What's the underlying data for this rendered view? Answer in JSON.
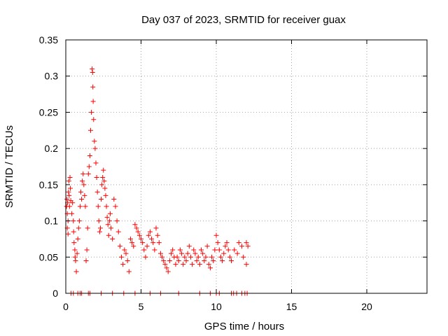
{
  "chart_data": {
    "type": "scatter",
    "title": "Day 037 of 2023, SRMTID for receiver guax",
    "xlabel": "GPS time / hours",
    "ylabel": "SRMTID / TECUs",
    "xlim": [
      0,
      24
    ],
    "ylim": [
      0,
      0.35
    ],
    "xticks": [
      "0",
      "5",
      "10",
      "15",
      "20"
    ],
    "yticks": [
      "0",
      "0.05",
      "0.1",
      "0.15",
      "0.2",
      "0.25",
      "0.3",
      "0.35"
    ],
    "grid": true,
    "marker": "+",
    "color": "#ff0000",
    "series": [
      {
        "name": "SRMTID",
        "points": [
          [
            0.05,
            0.12
          ],
          [
            0.08,
            0.13
          ],
          [
            0.1,
            0.11
          ],
          [
            0.12,
            0.125
          ],
          [
            0.15,
            0.1
          ],
          [
            0.18,
            0.14
          ],
          [
            0.2,
            0.155
          ],
          [
            0.22,
            0.135
          ],
          [
            0.25,
            0.12
          ],
          [
            0.28,
            0.16
          ],
          [
            0.3,
            0.145
          ],
          [
            0.33,
            0.128
          ],
          [
            0.1,
            0.09
          ],
          [
            0.15,
            0.082
          ],
          [
            0.4,
            0.11
          ],
          [
            0.45,
            0.125
          ],
          [
            0.5,
            0.1
          ],
          [
            0.52,
            0.085
          ],
          [
            0.55,
            0.07
          ],
          [
            0.6,
            0.06
          ],
          [
            0.62,
            0.05
          ],
          [
            0.65,
            0.045
          ],
          [
            0.7,
            0.03
          ],
          [
            0.75,
            0.055
          ],
          [
            0.8,
            0.075
          ],
          [
            0.85,
            0.09
          ],
          [
            0.9,
            0.1
          ],
          [
            0.95,
            0.12
          ],
          [
            1.0,
            0.14
          ],
          [
            1.05,
            0.13
          ],
          [
            1.1,
            0.155
          ],
          [
            1.15,
            0.165
          ],
          [
            1.2,
            0.15
          ],
          [
            1.25,
            0.135
          ],
          [
            1.3,
            0.12
          ],
          [
            1.35,
            0.045
          ],
          [
            1.4,
            0.06
          ],
          [
            1.45,
            0.09
          ],
          [
            1.5,
            0.165
          ],
          [
            1.55,
            0.175
          ],
          [
            1.6,
            0.19
          ],
          [
            1.65,
            0.225
          ],
          [
            1.7,
            0.25
          ],
          [
            1.75,
            0.31
          ],
          [
            1.78,
            0.305
          ],
          [
            1.8,
            0.285
          ],
          [
            1.82,
            0.265
          ],
          [
            1.85,
            0.24
          ],
          [
            1.9,
            0.21
          ],
          [
            1.95,
            0.2
          ],
          [
            2.0,
            0.18
          ],
          [
            2.05,
            0.16
          ],
          [
            2.1,
            0.14
          ],
          [
            2.15,
            0.12
          ],
          [
            2.2,
            0.1
          ],
          [
            2.25,
            0.085
          ],
          [
            2.3,
            0.09
          ],
          [
            2.35,
            0.13
          ],
          [
            2.4,
            0.15
          ],
          [
            2.45,
            0.16
          ],
          [
            2.5,
            0.17
          ],
          [
            2.55,
            0.155
          ],
          [
            2.6,
            0.145
          ],
          [
            2.65,
            0.135
          ],
          [
            2.7,
            0.12
          ],
          [
            2.75,
            0.105
          ],
          [
            2.8,
            0.095
          ],
          [
            2.85,
            0.08
          ],
          [
            2.9,
            0.1
          ],
          [
            2.95,
            0.11
          ],
          [
            3.0,
            0.09
          ],
          [
            3.1,
            0.075
          ],
          [
            3.2,
            0.13
          ],
          [
            3.3,
            0.12
          ],
          [
            3.4,
            0.1
          ],
          [
            3.5,
            0.085
          ],
          [
            3.6,
            0.065
          ],
          [
            3.7,
            0.05
          ],
          [
            3.8,
            0.04
          ],
          [
            3.9,
            0.06
          ],
          [
            4.0,
            0.055
          ],
          [
            4.1,
            0.045
          ],
          [
            4.2,
            0.03
          ],
          [
            4.3,
            0.075
          ],
          [
            4.4,
            0.07
          ],
          [
            4.5,
            0.065
          ],
          [
            4.6,
            0.095
          ],
          [
            4.7,
            0.09
          ],
          [
            4.8,
            0.085
          ],
          [
            4.9,
            0.08
          ],
          [
            5.0,
            0.075
          ],
          [
            5.1,
            0.07
          ],
          [
            5.2,
            0.06
          ],
          [
            5.3,
            0.05
          ],
          [
            5.4,
            0.065
          ],
          [
            5.5,
            0.08
          ],
          [
            5.6,
            0.085
          ],
          [
            5.7,
            0.075
          ],
          [
            5.8,
            0.07
          ],
          [
            5.9,
            0.06
          ],
          [
            6.0,
            0.09
          ],
          [
            6.1,
            0.08
          ],
          [
            6.2,
            0.07
          ],
          [
            6.3,
            0.055
          ],
          [
            6.4,
            0.05
          ],
          [
            6.5,
            0.045
          ],
          [
            6.6,
            0.04
          ],
          [
            6.7,
            0.035
          ],
          [
            6.8,
            0.03
          ],
          [
            6.9,
            0.045
          ],
          [
            7.0,
            0.055
          ],
          [
            7.1,
            0.06
          ],
          [
            7.2,
            0.05
          ],
          [
            7.3,
            0.04
          ],
          [
            7.4,
            0.05
          ],
          [
            7.5,
            0.045
          ],
          [
            7.6,
            0.06
          ],
          [
            7.7,
            0.055
          ],
          [
            7.8,
            0.04
          ],
          [
            7.9,
            0.05
          ],
          [
            8.0,
            0.045
          ],
          [
            8.1,
            0.055
          ],
          [
            8.2,
            0.065
          ],
          [
            8.3,
            0.05
          ],
          [
            8.4,
            0.04
          ],
          [
            8.5,
            0.06
          ],
          [
            8.6,
            0.055
          ],
          [
            8.7,
            0.045
          ],
          [
            8.8,
            0.05
          ],
          [
            8.9,
            0.04
          ],
          [
            9.0,
            0.06
          ],
          [
            9.1,
            0.055
          ],
          [
            9.2,
            0.045
          ],
          [
            9.3,
            0.05
          ],
          [
            9.4,
            0.065
          ],
          [
            9.5,
            0.04
          ],
          [
            9.6,
            0.035
          ],
          [
            9.7,
            0.05
          ],
          [
            9.8,
            0.045
          ],
          [
            9.9,
            0.06
          ],
          [
            10.0,
            0.08
          ],
          [
            10.1,
            0.07
          ],
          [
            10.2,
            0.06
          ],
          [
            10.3,
            0.05
          ],
          [
            10.4,
            0.045
          ],
          [
            10.5,
            0.055
          ],
          [
            10.6,
            0.065
          ],
          [
            10.7,
            0.07
          ],
          [
            10.8,
            0.06
          ],
          [
            10.9,
            0.05
          ],
          [
            11.0,
            0.045
          ],
          [
            11.2,
            0.06
          ],
          [
            11.4,
            0.055
          ],
          [
            11.5,
            0.07
          ],
          [
            11.7,
            0.065
          ],
          [
            11.8,
            0.05
          ],
          [
            12.0,
            0.07
          ],
          [
            12.1,
            0.065
          ],
          [
            12.0,
            0.04
          ],
          [
            0.35,
            0.0
          ],
          [
            0.5,
            0.0
          ],
          [
            0.8,
            0.0
          ],
          [
            0.95,
            0.0
          ],
          [
            1.05,
            0.0
          ],
          [
            1.5,
            0.0
          ],
          [
            1.6,
            0.0
          ],
          [
            2.35,
            0.0
          ],
          [
            3.1,
            0.0
          ],
          [
            3.85,
            0.0
          ],
          [
            4.6,
            0.0
          ],
          [
            5.6,
            0.0
          ],
          [
            6.3,
            0.0
          ],
          [
            7.5,
            0.0
          ],
          [
            8.9,
            0.0
          ],
          [
            9.6,
            0.0
          ],
          [
            10.0,
            0.0
          ],
          [
            10.2,
            0.0
          ],
          [
            11.0,
            0.0
          ],
          [
            11.15,
            0.0
          ],
          [
            11.35,
            0.0
          ],
          [
            11.7,
            0.0
          ],
          [
            11.9,
            0.0
          ],
          [
            12.05,
            0.0
          ]
        ]
      }
    ]
  }
}
